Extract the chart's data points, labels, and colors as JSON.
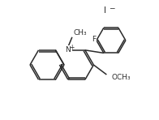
{
  "bg_color": "#ffffff",
  "line_color": "#2a2a2a",
  "text_color": "#2a2a2a",
  "bond_width": 1.1,
  "font_size": 6.5,
  "small_font": 5.5,
  "iodide_label": "I",
  "iodide_charge": "−",
  "n_label": "N",
  "n_charge": "+",
  "f_label": "F",
  "ch3_label": "CH₃",
  "och3_label": "OCH₃"
}
